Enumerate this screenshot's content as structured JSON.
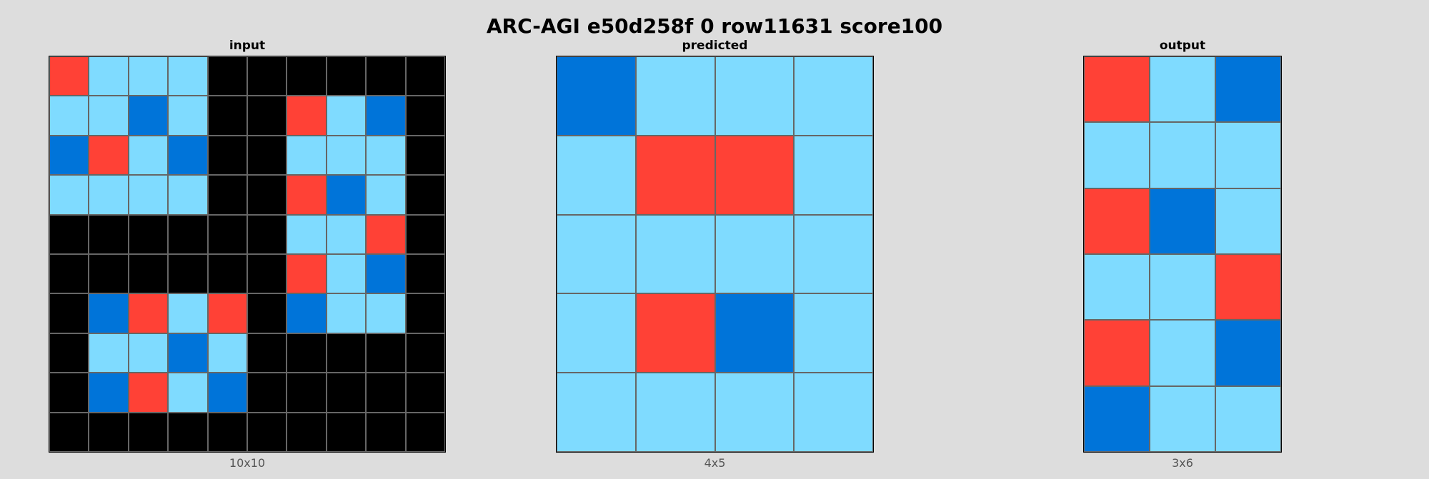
{
  "title": "ARC-AGI e50d258f 0 row11631 score100",
  "palette": {
    "0": "#000000",
    "1": "#0074d9",
    "2": "#ff4136",
    "8": "#7fdbff"
  },
  "panels": [
    {
      "key": "input",
      "label": "input",
      "size_label": "10x10",
      "grid": [
        [
          2,
          8,
          8,
          8,
          0,
          0,
          0,
          0,
          0,
          0
        ],
        [
          8,
          8,
          1,
          8,
          0,
          0,
          2,
          8,
          1,
          0
        ],
        [
          1,
          2,
          8,
          1,
          0,
          0,
          8,
          8,
          8,
          0
        ],
        [
          8,
          8,
          8,
          8,
          0,
          0,
          2,
          1,
          8,
          0
        ],
        [
          0,
          0,
          0,
          0,
          0,
          0,
          8,
          8,
          2,
          0
        ],
        [
          0,
          0,
          0,
          0,
          0,
          0,
          2,
          8,
          1,
          0
        ],
        [
          0,
          1,
          2,
          8,
          2,
          0,
          1,
          8,
          8,
          0
        ],
        [
          0,
          8,
          8,
          1,
          8,
          0,
          0,
          0,
          0,
          0
        ],
        [
          0,
          1,
          2,
          8,
          1,
          0,
          0,
          0,
          0,
          0
        ],
        [
          0,
          0,
          0,
          0,
          0,
          0,
          0,
          0,
          0,
          0
        ]
      ]
    },
    {
      "key": "predicted",
      "label": "predicted",
      "size_label": "4x5",
      "grid": [
        [
          1,
          8,
          8,
          8
        ],
        [
          8,
          2,
          2,
          8
        ],
        [
          8,
          8,
          8,
          8
        ],
        [
          8,
          2,
          1,
          8
        ],
        [
          8,
          8,
          8,
          8
        ]
      ]
    },
    {
      "key": "output",
      "label": "output",
      "size_label": "3x6",
      "grid": [
        [
          2,
          8,
          1
        ],
        [
          8,
          8,
          8
        ],
        [
          2,
          1,
          8
        ],
        [
          8,
          8,
          2
        ],
        [
          2,
          8,
          1
        ],
        [
          1,
          8,
          8
        ]
      ]
    }
  ]
}
